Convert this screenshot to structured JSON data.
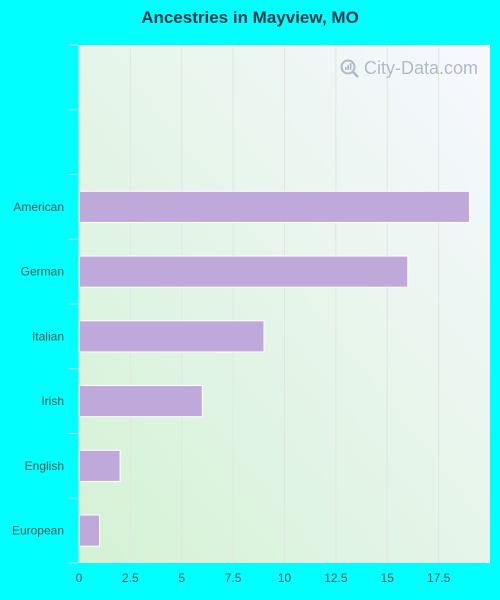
{
  "title": "Ancestries in Mayview, MO",
  "watermark": "City-Data.com",
  "colors": {
    "page_background": "#00ffff",
    "bar": "#bfa8da",
    "plot_bg_start": "#d4f2d4",
    "plot_bg_end": "#f7f8ff",
    "text": "#555555"
  },
  "chart_data": {
    "type": "bar",
    "orientation": "horizontal",
    "title": "Ancestries in Mayview, MO",
    "categories": [
      "American",
      "German",
      "Italian",
      "Irish",
      "English",
      "European"
    ],
    "values": [
      19,
      16,
      9,
      6,
      2,
      1
    ],
    "xlim": [
      0,
      20
    ],
    "xticks": [
      "0",
      "2.5",
      "5",
      "7.5",
      "10",
      "12.5",
      "15",
      "17.5"
    ],
    "xtick_values": [
      0,
      2.5,
      5,
      7.5,
      10,
      12.5,
      15,
      17.5
    ],
    "grid": true,
    "empty_slots_above": 2
  }
}
